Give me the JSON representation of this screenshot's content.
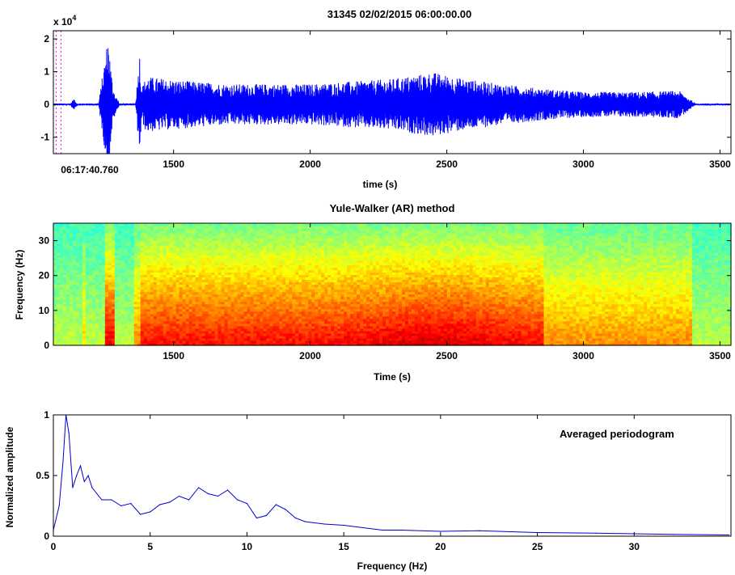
{
  "chart_data": [
    {
      "type": "line",
      "title": "31345 02/02/2015  06:00:00.00",
      "xlabel": "time (s)",
      "ylabel": "",
      "y_exponent": "x 10",
      "y_exponent_power": "4",
      "start_time_label": "06:17:40.760",
      "xlim": [
        1060,
        3540
      ],
      "ylim": [
        -1.5,
        2.25
      ],
      "xticks": [
        "1500",
        "2000",
        "2500",
        "3000",
        "3500"
      ],
      "yticks": [
        "-1",
        "0",
        "1",
        "2"
      ],
      "color": "#0000ff",
      "picks_color": "#ff00ff",
      "picks_x": [
        1070,
        1088
      ],
      "events": [
        {
          "start": 1120,
          "peak": 1135,
          "end": 1160,
          "amp": 0.18
        },
        {
          "start": 1225,
          "peak": 1262,
          "end": 1300,
          "amp": 2.2
        },
        {
          "start": 1360,
          "peak": 1376,
          "end": 1400,
          "amp": 1.6
        }
      ],
      "envelope": {
        "x": [
          1060,
          1360,
          1400,
          1500,
          1700,
          2000,
          2300,
          2450,
          2550,
          2700,
          2850,
          3000,
          3200,
          3350,
          3400,
          3410,
          3540
        ],
        "amp": [
          0.03,
          0.03,
          0.85,
          0.75,
          0.62,
          0.62,
          0.78,
          0.98,
          0.8,
          0.62,
          0.48,
          0.38,
          0.38,
          0.42,
          0.1,
          0.03,
          0.03
        ]
      }
    },
    {
      "type": "heatmap",
      "title": "Yule-Walker (AR) method",
      "xlabel": "Time (s)",
      "ylabel": "Frequency (Hz)",
      "xlim": [
        1060,
        3540
      ],
      "ylim": [
        0,
        35
      ],
      "xticks": [
        "1500",
        "2000",
        "2500",
        "3000",
        "3500"
      ],
      "yticks": [
        "0",
        "10",
        "20",
        "30"
      ],
      "colormap": "jet"
    },
    {
      "type": "line",
      "title": "",
      "annotation": "Averaged periodogram",
      "xlabel": "Frequency (Hz)",
      "ylabel": "Normalized amplitude",
      "xlim": [
        0,
        35
      ],
      "ylim": [
        0,
        1
      ],
      "xticks": [
        "0",
        "5",
        "10",
        "15",
        "20",
        "25",
        "30"
      ],
      "yticks": [
        "0",
        "0.5",
        "1"
      ],
      "color": "#0000cc",
      "x": [
        0,
        0.3,
        0.5,
        0.65,
        0.8,
        1.0,
        1.2,
        1.4,
        1.6,
        1.8,
        2.0,
        2.5,
        3.0,
        3.5,
        4.0,
        4.5,
        5.0,
        5.5,
        6.0,
        6.5,
        7.0,
        7.5,
        8.0,
        8.5,
        9.0,
        9.5,
        10.0,
        10.5,
        11.0,
        11.5,
        12.0,
        12.5,
        13,
        14,
        15,
        16,
        17,
        18,
        20,
        22,
        25,
        28,
        30,
        32,
        34.9
      ],
      "y": [
        0.05,
        0.25,
        0.62,
        1.0,
        0.85,
        0.4,
        0.5,
        0.58,
        0.45,
        0.5,
        0.4,
        0.3,
        0.3,
        0.25,
        0.27,
        0.18,
        0.2,
        0.26,
        0.28,
        0.33,
        0.3,
        0.4,
        0.35,
        0.33,
        0.38,
        0.3,
        0.27,
        0.15,
        0.17,
        0.26,
        0.22,
        0.15,
        0.12,
        0.1,
        0.09,
        0.07,
        0.05,
        0.05,
        0.04,
        0.045,
        0.03,
        0.025,
        0.02,
        0.015,
        0.01
      ]
    }
  ]
}
